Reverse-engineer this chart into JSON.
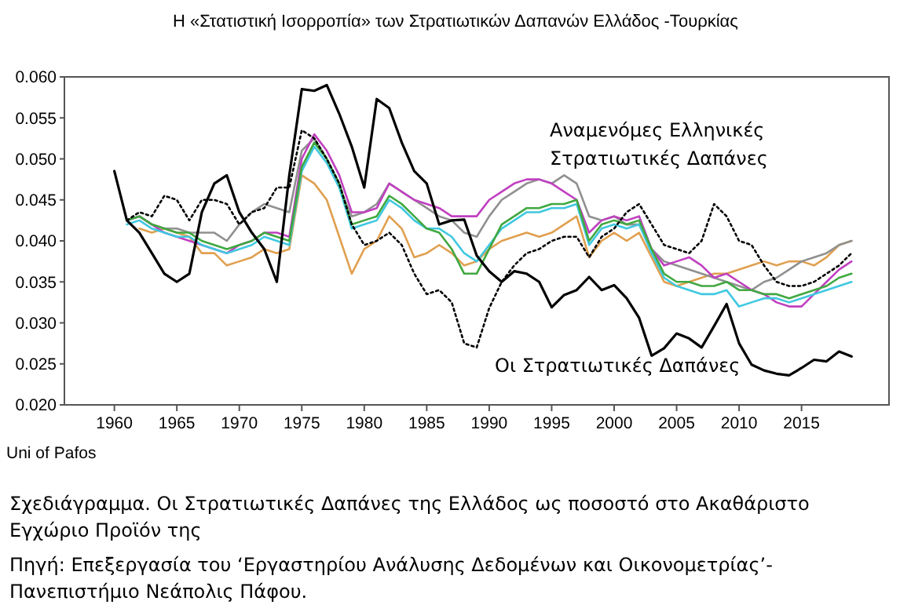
{
  "chart_data": {
    "type": "line",
    "title": "Η «Στατιστική Ισορροπία» των Στρατιωτικών Δαπανών Ελλάδος -Τουρκίας",
    "x": [
      1960,
      1961,
      1962,
      1963,
      1964,
      1965,
      1966,
      1967,
      1968,
      1969,
      1970,
      1971,
      1972,
      1973,
      1974,
      1975,
      1976,
      1977,
      1978,
      1979,
      1980,
      1981,
      1982,
      1983,
      1984,
      1985,
      1986,
      1987,
      1988,
      1989,
      1990,
      1991,
      1992,
      1993,
      1994,
      1995,
      1996,
      1997,
      1998,
      1999,
      2000,
      2001,
      2002,
      2003,
      2004,
      2005,
      2006,
      2007,
      2008,
      2009,
      2010,
      2011,
      2012,
      2013,
      2014,
      2015,
      2016,
      2017,
      2018,
      2019
    ],
    "series": [
      {
        "color": "#e0a050",
        "values": [
          null,
          null,
          0.0415,
          0.041,
          0.0415,
          0.041,
          0.0405,
          0.0385,
          0.0385,
          0.037,
          0.0375,
          0.038,
          0.039,
          0.0385,
          0.039,
          0.048,
          0.047,
          0.045,
          0.0405,
          0.036,
          0.039,
          0.04,
          0.043,
          0.0415,
          0.038,
          0.0385,
          0.0395,
          0.0385,
          0.037,
          0.0375,
          0.039,
          0.04,
          0.0405,
          0.041,
          0.0405,
          0.041,
          0.042,
          0.043,
          0.038,
          0.04,
          0.041,
          0.04,
          0.041,
          0.038,
          0.035,
          0.0345,
          0.035,
          0.0355,
          0.036,
          0.036,
          0.0365,
          0.037,
          0.0375,
          0.037,
          0.0375,
          0.0375,
          0.037,
          0.038,
          0.0395,
          0.04
        ]
      },
      {
        "color": "#909090",
        "values": [
          null,
          0.0425,
          0.043,
          0.042,
          0.0415,
          0.0415,
          0.041,
          0.041,
          0.041,
          0.04,
          0.042,
          0.0435,
          0.0445,
          0.044,
          0.0435,
          0.051,
          0.0525,
          0.05,
          0.0465,
          0.043,
          0.0435,
          0.0445,
          0.047,
          0.046,
          0.045,
          0.044,
          0.043,
          0.0425,
          0.041,
          0.0405,
          0.043,
          0.045,
          0.046,
          0.047,
          0.0475,
          0.047,
          0.048,
          0.047,
          0.043,
          0.0425,
          0.043,
          0.042,
          0.042,
          0.039,
          0.0375,
          0.037,
          0.0365,
          0.036,
          0.0355,
          0.035,
          0.0345,
          0.034,
          0.035,
          0.0355,
          0.0365,
          0.0375,
          0.038,
          0.0385,
          0.0395,
          0.04
        ]
      },
      {
        "color": "#c040c0",
        "values": [
          null,
          0.0425,
          0.043,
          0.042,
          0.041,
          0.0405,
          0.04,
          0.0395,
          0.039,
          0.0385,
          0.0395,
          0.04,
          0.041,
          0.041,
          0.0405,
          0.05,
          0.053,
          0.051,
          0.048,
          0.0435,
          0.0435,
          0.044,
          0.047,
          0.046,
          0.045,
          0.0445,
          0.044,
          0.043,
          0.043,
          0.043,
          0.045,
          0.046,
          0.047,
          0.0475,
          0.0475,
          0.047,
          0.046,
          0.045,
          0.041,
          0.0425,
          0.043,
          0.0425,
          0.043,
          0.039,
          0.037,
          0.0375,
          0.038,
          0.037,
          0.0355,
          0.036,
          0.035,
          0.034,
          0.0335,
          0.0325,
          0.032,
          0.032,
          0.0335,
          0.035,
          0.0365,
          0.0375
        ]
      },
      {
        "color": "#40c8e0",
        "values": [
          null,
          0.042,
          0.0425,
          0.0415,
          0.041,
          0.0405,
          0.0405,
          0.0395,
          0.039,
          0.0385,
          0.039,
          0.0395,
          0.0405,
          0.04,
          0.0395,
          0.0485,
          0.0515,
          0.0495,
          0.0465,
          0.0415,
          0.042,
          0.0425,
          0.045,
          0.044,
          0.0425,
          0.0415,
          0.0415,
          0.0405,
          0.0385,
          0.0375,
          0.0395,
          0.0415,
          0.0425,
          0.0435,
          0.0435,
          0.044,
          0.044,
          0.0445,
          0.0395,
          0.0415,
          0.042,
          0.0415,
          0.042,
          0.0385,
          0.0355,
          0.0345,
          0.034,
          0.0335,
          0.0335,
          0.034,
          0.032,
          0.0325,
          0.033,
          0.033,
          0.0325,
          0.033,
          0.0335,
          0.034,
          0.0345,
          0.035
        ]
      },
      {
        "color": "#40a840",
        "values": [
          null,
          0.0425,
          0.043,
          0.042,
          0.0415,
          0.041,
          0.041,
          0.04,
          0.0395,
          0.039,
          0.0395,
          0.04,
          0.041,
          0.0405,
          0.04,
          0.049,
          0.052,
          0.05,
          0.047,
          0.042,
          0.0425,
          0.043,
          0.0455,
          0.0445,
          0.043,
          0.0415,
          0.041,
          0.039,
          0.036,
          0.036,
          0.039,
          0.042,
          0.043,
          0.044,
          0.044,
          0.0445,
          0.0445,
          0.045,
          0.04,
          0.042,
          0.0425,
          0.042,
          0.0425,
          0.039,
          0.036,
          0.035,
          0.035,
          0.0345,
          0.0345,
          0.035,
          0.034,
          0.034,
          0.0335,
          0.0335,
          0.033,
          0.0335,
          0.034,
          0.0345,
          0.0355,
          0.036
        ]
      },
      {
        "color": "#000000",
        "line_style": "dotted",
        "values": [
          null,
          0.0425,
          0.0435,
          0.043,
          0.0455,
          0.045,
          0.0425,
          0.045,
          0.045,
          0.0445,
          0.042,
          0.0435,
          0.044,
          0.0465,
          0.0465,
          0.0535,
          0.0525,
          0.05,
          0.047,
          0.042,
          0.0395,
          0.04,
          0.041,
          0.0395,
          0.036,
          0.0335,
          0.034,
          0.0325,
          0.0275,
          0.027,
          0.0318,
          0.035,
          0.037,
          0.0385,
          0.039,
          0.04,
          0.0405,
          0.0405,
          0.038,
          0.0405,
          0.0415,
          0.0435,
          0.0445,
          0.042,
          0.0395,
          0.039,
          0.0385,
          0.04,
          0.0445,
          0.043,
          0.04,
          0.0395,
          0.037,
          0.035,
          0.0345,
          0.0345,
          0.035,
          0.036,
          0.037,
          0.0385
        ]
      },
      {
        "color": "#000000",
        "values": [
          0.0485,
          0.0425,
          0.041,
          0.0385,
          0.036,
          0.035,
          0.036,
          0.0435,
          0.047,
          0.048,
          0.0435,
          0.041,
          0.039,
          0.035,
          0.048,
          0.0585,
          0.0583,
          0.059,
          0.0555,
          0.0515,
          0.0465,
          0.0573,
          0.0562,
          0.052,
          0.0485,
          0.047,
          0.042,
          0.0425,
          0.0426,
          0.0382,
          0.0363,
          0.035,
          0.0363,
          0.036,
          0.035,
          0.0319,
          0.0334,
          0.034,
          0.0356,
          0.034,
          0.0346,
          0.033,
          0.0306,
          0.026,
          0.0269,
          0.0287,
          0.0281,
          0.027,
          0.0296,
          0.0323,
          0.0275,
          0.0249,
          0.0242,
          0.0238,
          0.0236,
          0.0245,
          0.0255,
          0.0253,
          0.0265,
          0.0259
        ]
      }
    ],
    "xlim": [
      1956,
      2022
    ],
    "xticks": [
      1960,
      1965,
      1970,
      1975,
      1980,
      1985,
      1990,
      1995,
      2000,
      2005,
      2010,
      2015
    ],
    "ylim": [
      0.02,
      0.06
    ],
    "yticks": [
      {
        "value": 0.02,
        "label": "0.020"
      },
      {
        "value": 0.025,
        "label": "0.025"
      },
      {
        "value": 0.03,
        "label": "0.030"
      },
      {
        "value": 0.035,
        "label": "0.035"
      },
      {
        "value": 0.04,
        "label": "0.040"
      },
      {
        "value": 0.045,
        "label": "0.045"
      },
      {
        "value": 0.05,
        "label": "0.050"
      },
      {
        "value": 0.055,
        "label": "0.055"
      },
      {
        "value": 0.06,
        "label": "0.060"
      }
    ],
    "line_style": "solid",
    "grid": false,
    "annotations": [
      "Αναμενόμες Ελληνικές\nΣτρατιωτικές Δαπάνες",
      "Οι Στρατιωτικές Δαπάνες",
      "Uni of Pafos",
      "Σχεδιάγραμμα. Οι Στρατιωτικές Δαπάνες της Ελλάδος ως ποσοστό στο Ακαθάριστο Εγχώριο Προϊόν της",
      "Πηγή: Επεξεργασία του ‘Εργαστηρίου Ανάλυσης Δεδομένων και Οικονομετρίας’- Πανεπιστήμιο Νεάπολις Πάφου."
    ]
  }
}
